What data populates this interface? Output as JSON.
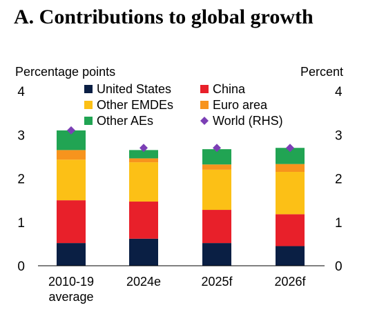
{
  "chart_data": {
    "type": "bar",
    "stacked": true,
    "title": "A. Contributions to global growth",
    "ylabel_left": "Percentage points",
    "ylabel_right": "Percent",
    "ylim": [
      0,
      4
    ],
    "y_ticks": [
      "0",
      "1",
      "2",
      "3",
      "4"
    ],
    "categories": [
      [
        "2010-19",
        "average"
      ],
      [
        "2024e"
      ],
      [
        "2025f"
      ],
      [
        "2026f"
      ]
    ],
    "series": [
      {
        "name": "United States",
        "color": "#0a1f44",
        "values": [
          0.52,
          0.62,
          0.52,
          0.45
        ]
      },
      {
        "name": "China",
        "color": "#e8202a",
        "values": [
          0.98,
          0.85,
          0.76,
          0.73
        ]
      },
      {
        "name": "Other EMDEs",
        "color": "#fcc016",
        "values": [
          0.93,
          0.9,
          0.92,
          0.97
        ]
      },
      {
        "name": "Euro area",
        "color": "#f7941d",
        "values": [
          0.22,
          0.09,
          0.12,
          0.18
        ]
      },
      {
        "name": "Other AEs",
        "color": "#21a453",
        "values": [
          0.45,
          0.19,
          0.35,
          0.37
        ]
      }
    ],
    "line_series": {
      "name": "World (RHS)",
      "color": "#7b3fb5",
      "marker": "diamond",
      "values": [
        3.1,
        2.7,
        2.7,
        2.7
      ]
    },
    "legend": {
      "placement": "top-center",
      "items": [
        {
          "name": "United States",
          "color": "#0a1f44",
          "marker": "square"
        },
        {
          "name": "China",
          "color": "#e8202a",
          "marker": "square"
        },
        {
          "name": "Other EMDEs",
          "color": "#fcc016",
          "marker": "square"
        },
        {
          "name": "Euro area",
          "color": "#f7941d",
          "marker": "square"
        },
        {
          "name": "Other AEs",
          "color": "#21a453",
          "marker": "square"
        },
        {
          "name": "World (RHS)",
          "color": "#7b3fb5",
          "marker": "diamond"
        }
      ]
    },
    "grid": false
  }
}
